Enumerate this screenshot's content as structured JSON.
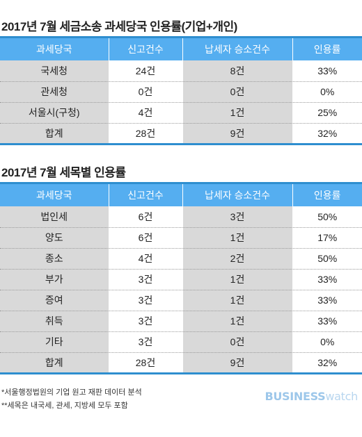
{
  "table1": {
    "title": "2017년 7월 세금소송 과세당국 인용률(기업+개인)",
    "headers": [
      "과세당국",
      "신고건수",
      "납세자 승소건수",
      "인용률"
    ],
    "rows": [
      [
        "국세청",
        "24건",
        "8건",
        "33%"
      ],
      [
        "관세청",
        "0건",
        "0건",
        "0%"
      ],
      [
        "서울시(구청)",
        "4건",
        "1건",
        "25%"
      ],
      [
        "합계",
        "28건",
        "9건",
        "32%"
      ]
    ]
  },
  "table2": {
    "title": "2017년 7월 세목별 인용률",
    "headers": [
      "과세당국",
      "신고건수",
      "납세자 승소건수",
      "인용률"
    ],
    "rows": [
      [
        "법인세",
        "6건",
        "3건",
        "50%"
      ],
      [
        "양도",
        "6건",
        "1건",
        "17%"
      ],
      [
        "종소",
        "4건",
        "2건",
        "50%"
      ],
      [
        "부가",
        "3건",
        "1건",
        "33%"
      ],
      [
        "증여",
        "3건",
        "1건",
        "33%"
      ],
      [
        "취득",
        "3건",
        "1건",
        "33%"
      ],
      [
        "기타",
        "3건",
        "0건",
        "0%"
      ],
      [
        "합계",
        "28건",
        "9건",
        "32%"
      ]
    ]
  },
  "notes": [
    "*서울행정법원의 기업 원고 재판 데이터 분석",
    "**세목은 내국세, 관세, 지방세 모두 포함"
  ],
  "logo": {
    "bold": "BUSINESS",
    "light": "watch"
  }
}
